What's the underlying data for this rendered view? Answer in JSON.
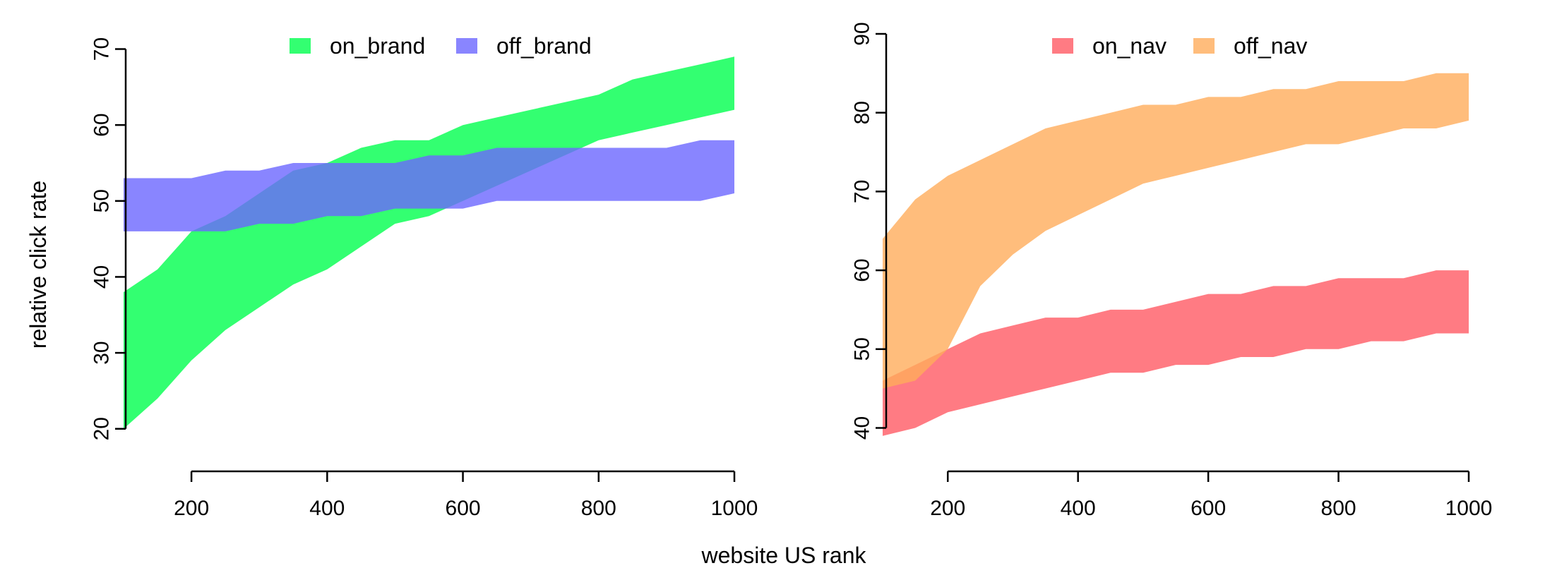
{
  "figure": {
    "xlabel": "website US rank",
    "ylabel": "relative click rate"
  },
  "chart_data": [
    {
      "type": "area",
      "x_ticks": [
        200,
        400,
        600,
        800,
        1000
      ],
      "y_ticks": [
        20,
        30,
        40,
        50,
        60,
        70
      ],
      "xlim": [
        100,
        1000
      ],
      "ylim": [
        17,
        72
      ],
      "legend_position": "top",
      "series": [
        {
          "name": "on_brand",
          "color": "#00ff4e",
          "x": [
            100,
            150,
            200,
            250,
            300,
            350,
            400,
            450,
            500,
            550,
            600,
            650,
            700,
            750,
            800,
            850,
            900,
            950,
            1000
          ],
          "upper": [
            38,
            41,
            46,
            48,
            51,
            54,
            55,
            57,
            58,
            58,
            60,
            61,
            62,
            63,
            64,
            66,
            67,
            68,
            69
          ],
          "lower": [
            20,
            24,
            29,
            33,
            36,
            39,
            41,
            44,
            47,
            48,
            50,
            52,
            54,
            56,
            58,
            59,
            60,
            61,
            62
          ]
        },
        {
          "name": "off_brand",
          "color": "#6b66ff",
          "x": [
            100,
            150,
            200,
            250,
            300,
            350,
            400,
            450,
            500,
            550,
            600,
            650,
            700,
            750,
            800,
            850,
            900,
            950,
            1000
          ],
          "upper": [
            53,
            53,
            53,
            54,
            54,
            55,
            55,
            55,
            55,
            56,
            56,
            57,
            57,
            57,
            57,
            57,
            57,
            58,
            58
          ],
          "lower": [
            46,
            46,
            46,
            46,
            47,
            47,
            48,
            48,
            49,
            49,
            49,
            50,
            50,
            50,
            50,
            50,
            50,
            50,
            51
          ]
        }
      ]
    },
    {
      "type": "area",
      "x_ticks": [
        200,
        400,
        600,
        800,
        1000
      ],
      "y_ticks": [
        40,
        50,
        60,
        70,
        80,
        90
      ],
      "xlim": [
        100,
        1000
      ],
      "ylim": [
        37,
        90
      ],
      "legend_position": "top",
      "series": [
        {
          "name": "on_nav",
          "color": "#ff5a64",
          "x": [
            100,
            150,
            200,
            250,
            300,
            350,
            400,
            450,
            500,
            550,
            600,
            650,
            700,
            750,
            800,
            850,
            900,
            950,
            1000
          ],
          "upper": [
            46,
            48,
            50,
            52,
            53,
            54,
            54,
            55,
            55,
            56,
            57,
            57,
            58,
            58,
            59,
            59,
            59,
            60,
            60
          ],
          "lower": [
            39,
            40,
            42,
            43,
            44,
            45,
            46,
            47,
            47,
            48,
            48,
            49,
            49,
            50,
            50,
            51,
            51,
            52,
            52
          ]
        },
        {
          "name": "off_nav",
          "color": "#ffad5b",
          "x": [
            100,
            150,
            200,
            250,
            300,
            350,
            400,
            450,
            500,
            550,
            600,
            650,
            700,
            750,
            800,
            850,
            900,
            950,
            1000
          ],
          "upper": [
            64,
            69,
            72,
            74,
            76,
            78,
            79,
            80,
            81,
            81,
            82,
            82,
            83,
            83,
            84,
            84,
            84,
            85,
            85
          ],
          "lower": [
            45,
            46,
            50,
            58,
            62,
            65,
            67,
            69,
            71,
            72,
            73,
            74,
            75,
            76,
            76,
            77,
            78,
            78,
            79
          ]
        }
      ]
    }
  ]
}
